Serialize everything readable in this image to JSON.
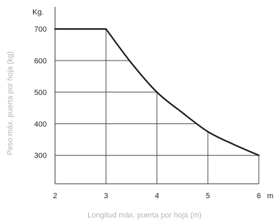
{
  "chart_data": {
    "type": "line",
    "xlabel": "Longitud máx. puerta por hoja (m)",
    "ylabel": "Peso máx. puerta por hoja (kg)",
    "x_unit": "m",
    "y_unit": "Kg.",
    "x_ticks": [
      2,
      3,
      4,
      5,
      6
    ],
    "y_ticks": [
      300,
      400,
      500,
      600,
      700
    ],
    "xlim": [
      2,
      6
    ],
    "ylim": [
      210,
      770
    ],
    "grid": true,
    "series": [
      {
        "x": [
          2,
          3,
          3.5,
          4,
          4.5,
          5,
          5.5,
          6
        ],
        "y": [
          700,
          700,
          592,
          500,
          435,
          375,
          335,
          300
        ]
      }
    ],
    "colors": {
      "line": "#1a1a1a",
      "grid": "#444444",
      "axis": "#333333"
    }
  }
}
